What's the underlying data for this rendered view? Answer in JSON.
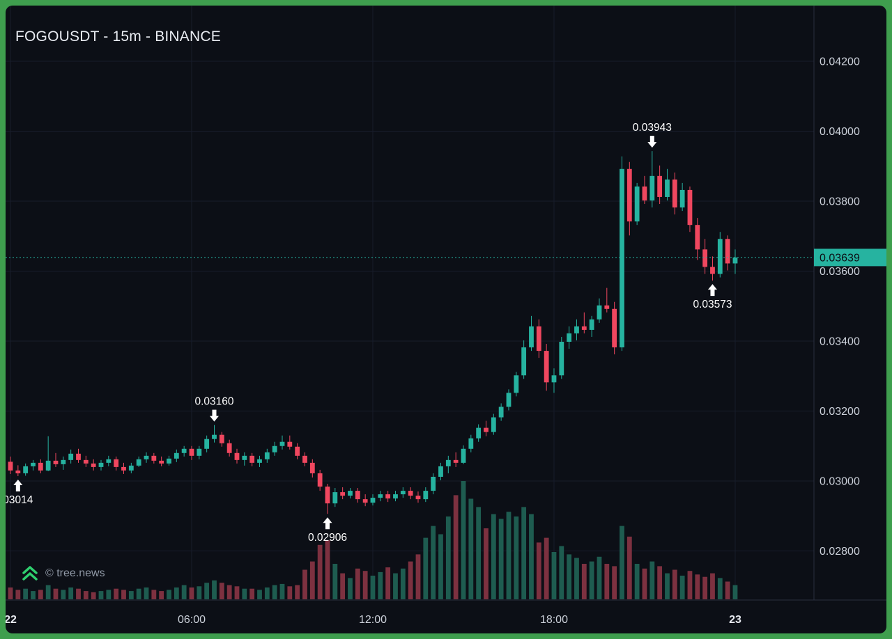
{
  "header": {
    "title": "FOGOUSDT - 15m - BINANCE"
  },
  "watermark": {
    "text": "© tree.news"
  },
  "colors": {
    "frame": "#3f9e4e",
    "background": "#0c0f16",
    "grid": "#181d2b",
    "up": "#26b3a0",
    "down": "#f0475f",
    "volume_up": "#1e5c50",
    "volume_down": "#7d3140",
    "axis_text": "#ccd1da",
    "axis_text_strong": "#e8ebf1",
    "axis_line": "#2a2f3e",
    "title_text": "#e9ecf2",
    "annotation_text": "#ffffff",
    "badge_text": "#0b0e14",
    "watermark_text": "#9099a6",
    "logo_green": "#2fd06f"
  },
  "chart_data": {
    "type": "candlestick",
    "title": "FOGOUSDT - 15m - BINANCE",
    "symbol": "FOGOUSDT",
    "interval": "15m",
    "exchange": "BINANCE",
    "last_price": 0.03639,
    "last_price_label": "0.03639",
    "price_axis": {
      "ticks": [
        0.042,
        0.04,
        0.038,
        0.036,
        0.034,
        0.032,
        0.03,
        0.028
      ],
      "min": 0.028,
      "max": 0.042,
      "format_decimals": 5
    },
    "time_axis": {
      "ticks": [
        {
          "label": "22",
          "index": 0,
          "emphasis": true
        },
        {
          "label": "06:00",
          "index": 24
        },
        {
          "label": "12:00",
          "index": 48
        },
        {
          "label": "18:00",
          "index": 72
        },
        {
          "label": "23",
          "index": 96,
          "emphasis": true
        }
      ]
    },
    "annotations": [
      {
        "label": "0.03943",
        "index": 85,
        "direction": "down"
      },
      {
        "label": "0.03573",
        "index": 93,
        "direction": "up"
      },
      {
        "label": "0.03160",
        "index": 27,
        "direction": "down"
      },
      {
        "label": "0.02906",
        "index": 42,
        "direction": "up"
      },
      {
        "label": "03014",
        "index": 1,
        "direction": "up"
      }
    ],
    "candles_columns": [
      "open",
      "high",
      "low",
      "close",
      "volume_rel"
    ],
    "candles": [
      [
        0.03055,
        0.0307,
        0.0302,
        0.0303,
        10
      ],
      [
        0.0303,
        0.03045,
        0.03014,
        0.03022,
        8
      ],
      [
        0.03022,
        0.0305,
        0.03015,
        0.03042,
        9
      ],
      [
        0.03042,
        0.0306,
        0.0303,
        0.03052,
        7
      ],
      [
        0.03052,
        0.03062,
        0.03022,
        0.0303,
        8
      ],
      [
        0.0303,
        0.03128,
        0.03028,
        0.03058,
        12
      ],
      [
        0.03058,
        0.0308,
        0.0304,
        0.03048,
        9
      ],
      [
        0.03048,
        0.0307,
        0.03032,
        0.0306,
        8
      ],
      [
        0.0306,
        0.0309,
        0.0305,
        0.03078,
        10
      ],
      [
        0.03078,
        0.03092,
        0.03052,
        0.0306,
        9
      ],
      [
        0.0306,
        0.03072,
        0.0304,
        0.0305,
        7
      ],
      [
        0.0305,
        0.03062,
        0.0303,
        0.0304,
        6
      ],
      [
        0.0304,
        0.0306,
        0.0303,
        0.03052,
        7
      ],
      [
        0.03052,
        0.03072,
        0.03042,
        0.03062,
        8
      ],
      [
        0.03062,
        0.0307,
        0.0303,
        0.0304,
        9
      ],
      [
        0.0304,
        0.03052,
        0.0302,
        0.0303,
        8
      ],
      [
        0.0303,
        0.03052,
        0.03022,
        0.03044,
        7
      ],
      [
        0.03044,
        0.0307,
        0.0304,
        0.03062,
        9
      ],
      [
        0.03062,
        0.03082,
        0.03052,
        0.03072,
        10
      ],
      [
        0.03072,
        0.0308,
        0.0305,
        0.03058,
        8
      ],
      [
        0.03058,
        0.0307,
        0.03042,
        0.0305,
        7
      ],
      [
        0.0305,
        0.03072,
        0.03044,
        0.03064,
        8
      ],
      [
        0.03064,
        0.0309,
        0.03054,
        0.0308,
        10
      ],
      [
        0.0308,
        0.031,
        0.0307,
        0.03092,
        12
      ],
      [
        0.03092,
        0.031,
        0.0306,
        0.03072,
        10
      ],
      [
        0.03072,
        0.031,
        0.03062,
        0.03092,
        11
      ],
      [
        0.03092,
        0.0313,
        0.03082,
        0.0312,
        14
      ],
      [
        0.0312,
        0.0316,
        0.0311,
        0.03132,
        16
      ],
      [
        0.03132,
        0.0314,
        0.03098,
        0.03108,
        14
      ],
      [
        0.03108,
        0.03118,
        0.0307,
        0.0308,
        12
      ],
      [
        0.0308,
        0.03092,
        0.0305,
        0.0306,
        11
      ],
      [
        0.0306,
        0.03082,
        0.03044,
        0.03072,
        9
      ],
      [
        0.03072,
        0.0308,
        0.03042,
        0.03052,
        9
      ],
      [
        0.03052,
        0.03072,
        0.0304,
        0.03062,
        8
      ],
      [
        0.03062,
        0.03092,
        0.03052,
        0.03082,
        10
      ],
      [
        0.03082,
        0.03112,
        0.03072,
        0.031,
        12
      ],
      [
        0.031,
        0.0313,
        0.0309,
        0.03112,
        13
      ],
      [
        0.03112,
        0.0313,
        0.0309,
        0.03098,
        11
      ],
      [
        0.03098,
        0.03108,
        0.03062,
        0.03072,
        12
      ],
      [
        0.03072,
        0.03082,
        0.03042,
        0.03052,
        25
      ],
      [
        0.03052,
        0.03062,
        0.0301,
        0.03022,
        32
      ],
      [
        0.03022,
        0.03032,
        0.02972,
        0.02984,
        46
      ],
      [
        0.02984,
        0.02992,
        0.02906,
        0.02936,
        50
      ],
      [
        0.02936,
        0.0298,
        0.02926,
        0.02968,
        30
      ],
      [
        0.02968,
        0.02982,
        0.02948,
        0.02958,
        22
      ],
      [
        0.02958,
        0.0298,
        0.0295,
        0.02972,
        18
      ],
      [
        0.02972,
        0.0298,
        0.02938,
        0.02948,
        26
      ],
      [
        0.02948,
        0.02962,
        0.02928,
        0.02938,
        24
      ],
      [
        0.02938,
        0.02962,
        0.0293,
        0.02952,
        20
      ],
      [
        0.02952,
        0.02972,
        0.02942,
        0.02962,
        23
      ],
      [
        0.02962,
        0.02972,
        0.0294,
        0.0295,
        27
      ],
      [
        0.0295,
        0.02972,
        0.02942,
        0.02962,
        22
      ],
      [
        0.02962,
        0.02982,
        0.02952,
        0.02972,
        26
      ],
      [
        0.02972,
        0.02982,
        0.02948,
        0.02958,
        32
      ],
      [
        0.02958,
        0.0297,
        0.02938,
        0.02948,
        38
      ],
      [
        0.02948,
        0.02982,
        0.0294,
        0.02972,
        52
      ],
      [
        0.02972,
        0.03022,
        0.02962,
        0.03012,
        62
      ],
      [
        0.03012,
        0.03052,
        0.03002,
        0.03042,
        55
      ],
      [
        0.03042,
        0.03072,
        0.03022,
        0.0306,
        70
      ],
      [
        0.0306,
        0.03082,
        0.0304,
        0.03052,
        88
      ],
      [
        0.03052,
        0.03102,
        0.03048,
        0.03092,
        100
      ],
      [
        0.03092,
        0.03132,
        0.03082,
        0.03122,
        85
      ],
      [
        0.03122,
        0.03162,
        0.03112,
        0.03152,
        78
      ],
      [
        0.03152,
        0.03172,
        0.03128,
        0.0314,
        60
      ],
      [
        0.0314,
        0.03192,
        0.03132,
        0.03182,
        72
      ],
      [
        0.03182,
        0.03222,
        0.03172,
        0.03212,
        68
      ],
      [
        0.03212,
        0.03262,
        0.03202,
        0.03252,
        74
      ],
      [
        0.03252,
        0.03312,
        0.03242,
        0.03302,
        70
      ],
      [
        0.03302,
        0.03402,
        0.03292,
        0.03382,
        78
      ],
      [
        0.03382,
        0.03472,
        0.03372,
        0.03442,
        72
      ],
      [
        0.03442,
        0.03462,
        0.03352,
        0.03372,
        48
      ],
      [
        0.03372,
        0.03392,
        0.03258,
        0.03282,
        52
      ],
      [
        0.03282,
        0.03322,
        0.03252,
        0.03302,
        40
      ],
      [
        0.03302,
        0.03412,
        0.03292,
        0.03398,
        45
      ],
      [
        0.03398,
        0.03442,
        0.03378,
        0.03422,
        38
      ],
      [
        0.03422,
        0.03462,
        0.03402,
        0.03442,
        35
      ],
      [
        0.03442,
        0.03482,
        0.03422,
        0.03432,
        30
      ],
      [
        0.03432,
        0.03472,
        0.03412,
        0.03462,
        32
      ],
      [
        0.03462,
        0.03522,
        0.03452,
        0.03502,
        36
      ],
      [
        0.03502,
        0.03552,
        0.03482,
        0.03492,
        30
      ],
      [
        0.03492,
        0.03512,
        0.03362,
        0.03382,
        28
      ],
      [
        0.03382,
        0.03928,
        0.03372,
        0.03892,
        62
      ],
      [
        0.03892,
        0.03912,
        0.03702,
        0.03742,
        53
      ],
      [
        0.03742,
        0.03852,
        0.03732,
        0.03842,
        30
      ],
      [
        0.03842,
        0.03872,
        0.03792,
        0.03802,
        26
      ],
      [
        0.03802,
        0.03943,
        0.03782,
        0.03872,
        32
      ],
      [
        0.03872,
        0.03902,
        0.03792,
        0.03812,
        28
      ],
      [
        0.03812,
        0.03892,
        0.03802,
        0.03862,
        22
      ],
      [
        0.03862,
        0.03882,
        0.03762,
        0.03782,
        25
      ],
      [
        0.03782,
        0.03852,
        0.03772,
        0.03832,
        20
      ],
      [
        0.03832,
        0.03842,
        0.03712,
        0.03732,
        24
      ],
      [
        0.03732,
        0.03752,
        0.03632,
        0.03662,
        21
      ],
      [
        0.03662,
        0.03692,
        0.03592,
        0.03612,
        19
      ],
      [
        0.03612,
        0.03642,
        0.03573,
        0.03592,
        22
      ],
      [
        0.03592,
        0.03712,
        0.03582,
        0.03692,
        18
      ],
      [
        0.03692,
        0.03702,
        0.03602,
        0.03622,
        15
      ],
      [
        0.03622,
        0.03662,
        0.03592,
        0.03639,
        12
      ]
    ]
  }
}
